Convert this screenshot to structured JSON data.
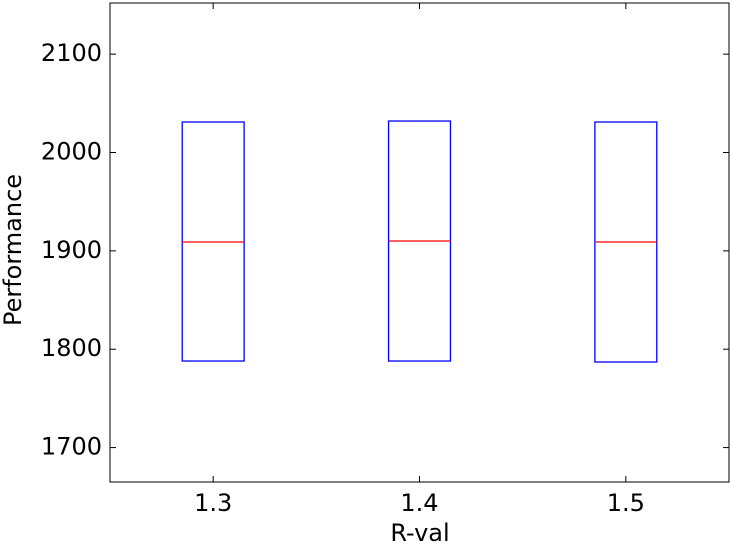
{
  "chart_data": {
    "type": "box",
    "x_label": "R-val",
    "y_label": "Performance",
    "x": [
      1.3,
      1.4,
      1.5
    ],
    "q1": [
      1788,
      1788,
      1787
    ],
    "median": [
      1909,
      1910,
      1909
    ],
    "q3": [
      2031,
      2032,
      2031
    ],
    "box_color": "#0000ff",
    "median_color": "#ff0000",
    "xlim": [
      1.25,
      1.55
    ],
    "xticks": [
      1.3,
      1.4,
      1.5
    ],
    "ylim": [
      1665,
      2152
    ],
    "yticks": [
      1700,
      1800,
      1900,
      2000,
      2100
    ]
  }
}
